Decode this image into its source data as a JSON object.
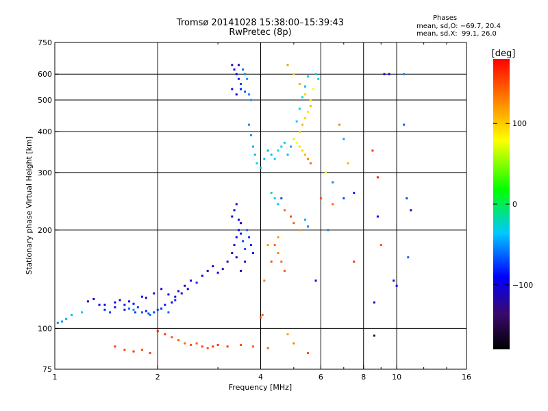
{
  "header": {
    "title_line1": "Tromsø 20141028 15:38:00–15:39:43",
    "title_line2": "RwPretec (8p)"
  },
  "stats": {
    "heading": "Phases",
    "line_o": "mean, sd,O: −69.7, 20.4",
    "line_x": "mean, sd,X:  99.1, 26.0"
  },
  "colorbar": {
    "label": "[deg]",
    "ticks": [
      {
        "value": 100,
        "label": "100"
      },
      {
        "value": 0,
        "label": "0"
      },
      {
        "value": -100,
        "label": "−100"
      }
    ],
    "range": [
      -180,
      180
    ]
  },
  "chart_data": {
    "type": "scatter",
    "title": "Tromsø 20141028 15:38:00–15:39:43",
    "subtitle": "RwPretec (8p)",
    "xlabel": "Frequency [MHz]",
    "ylabel": "Stationary phase Virtual Height [km]",
    "xscale": "log",
    "yscale": "log",
    "xlim": [
      1,
      16
    ],
    "ylim": [
      75,
      750
    ],
    "xticks": [
      {
        "value": 1,
        "label": "1"
      },
      {
        "value": 2,
        "label": "2"
      },
      {
        "value": 4,
        "label": "4"
      },
      {
        "value": 6,
        "label": "6"
      },
      {
        "value": 8,
        "label": "8"
      },
      {
        "value": 10,
        "label": "10"
      },
      {
        "value": 16,
        "label": "16"
      }
    ],
    "yticks": [
      {
        "value": 75,
        "label": "75"
      },
      {
        "value": 100,
        "label": "100"
      },
      {
        "value": 200,
        "label": "200"
      },
      {
        "value": 300,
        "label": "300"
      },
      {
        "value": 400,
        "label": "400"
      },
      {
        "value": 500,
        "label": "500"
      },
      {
        "value": 600,
        "label": "600"
      },
      {
        "value": 750,
        "label": "750"
      }
    ],
    "grid_x": [
      2,
      4,
      6,
      8,
      10
    ],
    "grid_y": [
      100,
      200,
      300,
      400,
      500,
      600
    ],
    "color_scale": "phase [deg], -180 (black) to 180 (red), rainbow",
    "points": [
      [
        1.02,
        104,
        -60
      ],
      [
        1.05,
        105,
        -55
      ],
      [
        1.08,
        107,
        -50
      ],
      [
        1.12,
        110,
        -45
      ],
      [
        1.2,
        112,
        -40
      ],
      [
        1.25,
        121,
        -110
      ],
      [
        1.3,
        123,
        -115
      ],
      [
        1.35,
        118,
        -100
      ],
      [
        1.4,
        114,
        -90
      ],
      [
        1.45,
        112,
        -80
      ],
      [
        1.5,
        120,
        -105
      ],
      [
        1.55,
        122,
        -110
      ],
      [
        1.6,
        118,
        -95
      ],
      [
        1.65,
        115,
        -70
      ],
      [
        1.7,
        114,
        -60
      ],
      [
        1.75,
        116,
        -80
      ],
      [
        1.8,
        112,
        -75
      ],
      [
        1.85,
        113,
        -90
      ],
      [
        1.9,
        110,
        -70
      ],
      [
        1.95,
        112,
        -80
      ],
      [
        2.0,
        114,
        -85
      ],
      [
        2.05,
        115,
        -90
      ],
      [
        2.1,
        118,
        -95
      ],
      [
        2.15,
        112,
        -70
      ],
      [
        2.2,
        120,
        -100
      ],
      [
        2.25,
        125,
        -110
      ],
      [
        2.3,
        130,
        -115
      ],
      [
        2.4,
        135,
        -120
      ],
      [
        2.5,
        140,
        -100
      ],
      [
        2.6,
        138,
        -90
      ],
      [
        2.7,
        145,
        -110
      ],
      [
        2.8,
        150,
        -120
      ],
      [
        2.9,
        155,
        -110
      ],
      [
        3.0,
        148,
        -100
      ],
      [
        3.1,
        152,
        -120
      ],
      [
        1.8,
        125,
        -100
      ],
      [
        1.95,
        128,
        -110
      ],
      [
        2.05,
        132,
        -120
      ],
      [
        2.15,
        127,
        -100
      ],
      [
        2.25,
        122,
        -90
      ],
      [
        1.65,
        121,
        -110
      ],
      [
        1.7,
        119,
        -100
      ],
      [
        1.85,
        124,
        -110
      ],
      [
        2.35,
        128,
        -100
      ],
      [
        2.45,
        132,
        -115
      ],
      [
        1.4,
        118,
        -110
      ],
      [
        1.5,
        116,
        -100
      ],
      [
        1.6,
        114,
        -95
      ],
      [
        1.72,
        112,
        -80
      ],
      [
        1.88,
        111,
        -75
      ],
      [
        3.2,
        160,
        -115
      ],
      [
        3.3,
        170,
        -120
      ],
      [
        3.35,
        180,
        -110
      ],
      [
        3.4,
        190,
        -105
      ],
      [
        3.45,
        200,
        -100
      ],
      [
        3.5,
        210,
        -110
      ],
      [
        3.3,
        220,
        -115
      ],
      [
        3.35,
        230,
        -120
      ],
      [
        3.4,
        240,
        -105
      ],
      [
        3.45,
        215,
        -100
      ],
      [
        3.5,
        195,
        -90
      ],
      [
        3.55,
        185,
        -80
      ],
      [
        3.6,
        175,
        -75
      ],
      [
        3.65,
        200,
        -70
      ],
      [
        3.7,
        190,
        -85
      ],
      [
        3.75,
        180,
        -90
      ],
      [
        3.8,
        170,
        -100
      ],
      [
        3.6,
        160,
        -110
      ],
      [
        3.5,
        150,
        -115
      ],
      [
        3.4,
        165,
        -120
      ],
      [
        3.3,
        640,
        -120
      ],
      [
        3.35,
        620,
        -110
      ],
      [
        3.4,
        600,
        -100
      ],
      [
        3.45,
        580,
        -90
      ],
      [
        3.5,
        560,
        -80
      ],
      [
        3.55,
        620,
        -70
      ],
      [
        3.6,
        600,
        -60
      ],
      [
        3.65,
        580,
        -55
      ],
      [
        3.3,
        540,
        -100
      ],
      [
        3.4,
        520,
        -110
      ],
      [
        3.5,
        540,
        -90
      ],
      [
        3.6,
        530,
        -75
      ],
      [
        3.7,
        520,
        -60
      ],
      [
        3.75,
        500,
        -55
      ],
      [
        3.45,
        640,
        -120
      ],
      [
        3.7,
        420,
        -60
      ],
      [
        3.75,
        390,
        -55
      ],
      [
        3.8,
        360,
        -50
      ],
      [
        3.85,
        340,
        -45
      ],
      [
        3.9,
        320,
        -40
      ],
      [
        4.0,
        310,
        -40
      ],
      [
        4.1,
        330,
        -45
      ],
      [
        4.2,
        350,
        -50
      ],
      [
        4.3,
        340,
        -45
      ],
      [
        4.4,
        330,
        -40
      ],
      [
        4.5,
        350,
        -35
      ],
      [
        4.6,
        360,
        -30
      ],
      [
        4.7,
        370,
        -40
      ],
      [
        4.8,
        340,
        -45
      ],
      [
        4.9,
        360,
        -50
      ],
      [
        5.0,
        380,
        70
      ],
      [
        5.1,
        370,
        80
      ],
      [
        5.2,
        360,
        90
      ],
      [
        5.3,
        350,
        100
      ],
      [
        5.4,
        340,
        110
      ],
      [
        5.5,
        330,
        130
      ],
      [
        5.6,
        320,
        140
      ],
      [
        5.2,
        400,
        100
      ],
      [
        5.3,
        420,
        110
      ],
      [
        5.4,
        440,
        95
      ],
      [
        5.5,
        460,
        90
      ],
      [
        5.6,
        500,
        85
      ],
      [
        5.7,
        540,
        80
      ],
      [
        5.8,
        600,
        -40
      ],
      [
        5.9,
        580,
        -30
      ],
      [
        4.8,
        640,
        120
      ],
      [
        5.0,
        600,
        100
      ],
      [
        5.2,
        560,
        110
      ],
      [
        5.4,
        520,
        100
      ],
      [
        5.6,
        480,
        105
      ],
      [
        5.1,
        430,
        -40
      ],
      [
        5.2,
        470,
        -35
      ],
      [
        5.3,
        510,
        -30
      ],
      [
        5.4,
        550,
        -45
      ],
      [
        5.5,
        590,
        -40
      ],
      [
        4.3,
        260,
        -20
      ],
      [
        4.4,
        250,
        -30
      ],
      [
        4.5,
        240,
        -45
      ],
      [
        4.6,
        250,
        -80
      ],
      [
        4.7,
        230,
        140
      ],
      [
        4.9,
        220,
        150
      ],
      [
        5.0,
        210,
        145
      ],
      [
        5.2,
        200,
        120
      ],
      [
        5.4,
        215,
        -50
      ],
      [
        5.5,
        205,
        -60
      ],
      [
        4.5,
        170,
        130
      ],
      [
        4.6,
        160,
        140
      ],
      [
        4.7,
        150,
        145
      ],
      [
        4.4,
        180,
        140
      ],
      [
        4.5,
        190,
        120
      ],
      [
        4.0,
        108,
        150
      ],
      [
        4.05,
        110,
        145
      ],
      [
        4.2,
        180,
        120
      ],
      [
        4.3,
        160,
        150
      ],
      [
        4.1,
        140,
        130
      ],
      [
        1.5,
        88,
        160
      ],
      [
        1.6,
        86,
        155
      ],
      [
        1.7,
        85,
        160
      ],
      [
        1.8,
        86,
        150
      ],
      [
        1.9,
        84,
        155
      ],
      [
        2.0,
        98,
        170
      ],
      [
        2.1,
        96,
        160
      ],
      [
        2.2,
        94,
        150
      ],
      [
        2.3,
        92,
        145
      ],
      [
        2.4,
        90,
        140
      ],
      [
        2.5,
        89,
        150
      ],
      [
        2.6,
        90,
        145
      ],
      [
        2.7,
        88,
        155
      ],
      [
        2.8,
        87,
        150
      ],
      [
        2.9,
        88,
        160
      ],
      [
        3.0,
        89,
        160
      ],
      [
        3.2,
        88,
        155
      ],
      [
        3.5,
        89,
        150
      ],
      [
        3.8,
        88,
        145
      ],
      [
        4.2,
        87,
        140
      ],
      [
        4.8,
        96,
        120
      ],
      [
        5.0,
        90,
        130
      ],
      [
        5.5,
        84,
        150
      ],
      [
        6.0,
        250,
        150
      ],
      [
        6.5,
        240,
        140
      ],
      [
        6.2,
        300,
        80
      ],
      [
        6.5,
        280,
        -60
      ],
      [
        7.0,
        250,
        -80
      ],
      [
        7.5,
        260,
        -90
      ],
      [
        6.8,
        420,
        130
      ],
      [
        7.2,
        320,
        110
      ],
      [
        7.0,
        380,
        -50
      ],
      [
        8.5,
        350,
        160
      ],
      [
        8.8,
        290,
        170
      ],
      [
        9.0,
        180,
        150
      ],
      [
        8.8,
        220,
        -100
      ],
      [
        8.6,
        120,
        -110
      ],
      [
        8.6,
        95,
        -150
      ],
      [
        9.5,
        600,
        -100
      ],
      [
        10.5,
        600,
        -60
      ],
      [
        10.5,
        420,
        -70
      ],
      [
        10.7,
        250,
        -80
      ],
      [
        11.0,
        230,
        -120
      ],
      [
        10.0,
        135,
        -100
      ],
      [
        10.8,
        165,
        -70
      ],
      [
        9.2,
        600,
        -110
      ],
      [
        9.8,
        140,
        -110
      ],
      [
        7.5,
        160,
        160
      ],
      [
        6.3,
        200,
        -60
      ],
      [
        5.8,
        140,
        -100
      ]
    ]
  }
}
